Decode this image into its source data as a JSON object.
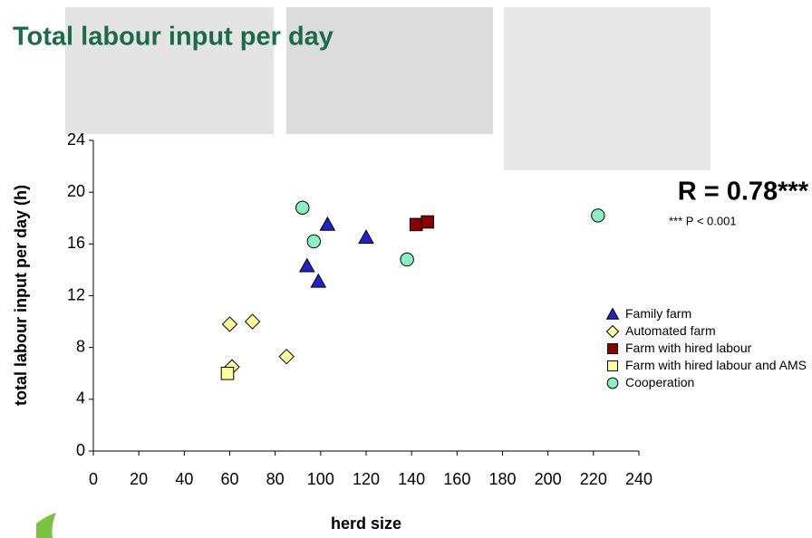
{
  "chart_data": {
    "type": "scatter",
    "title": "Total labour input per day",
    "xlabel": "herd size",
    "ylabel": "total labour input per day (h)",
    "xlim": [
      0,
      240
    ],
    "xticks": [
      0,
      20,
      40,
      60,
      80,
      100,
      120,
      140,
      160,
      180,
      200,
      220,
      240
    ],
    "ylim": [
      0,
      24
    ],
    "yticks": [
      0,
      4,
      8,
      12,
      16,
      20,
      24
    ],
    "grid": false,
    "annotations": [
      "R = 0.78***",
      "*** P < 0.001"
    ],
    "series": [
      {
        "name": "Family farm",
        "marker": "triangle",
        "color": "#2222cc",
        "x": [
          94,
          99,
          103,
          120
        ],
        "values": [
          14.3,
          13.1,
          17.5,
          16.5
        ]
      },
      {
        "name": "Automated  farm",
        "marker": "diamond",
        "color": "#ffff99",
        "x": [
          60,
          70,
          61,
          85
        ],
        "values": [
          9.8,
          10,
          6.5,
          7.3
        ]
      },
      {
        "name": "Farm with hired labour",
        "marker": "square",
        "color": "#8b0000",
        "x": [
          142,
          147
        ],
        "values": [
          17.5,
          17.7
        ]
      },
      {
        "name": "Farm with hired labour and AMS",
        "marker": "square",
        "color": "#ffff99",
        "x": [
          59
        ],
        "values": [
          6
        ]
      },
      {
        "name": "Cooperation",
        "marker": "circle",
        "color": "#88f0c0",
        "x": [
          92,
          97,
          138,
          222
        ],
        "values": [
          18.8,
          16.2,
          14.8,
          18.2
        ]
      }
    ]
  }
}
